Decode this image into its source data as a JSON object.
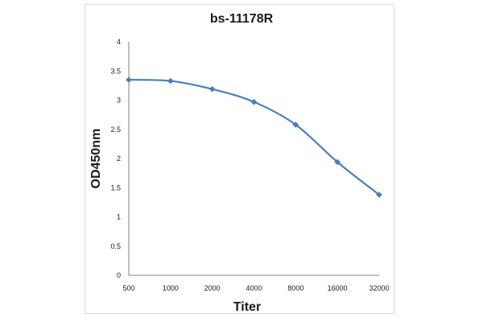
{
  "chart_data": {
    "type": "line",
    "title": "bs-11178R",
    "xlabel": "Titer",
    "ylabel": "OD450nm",
    "categories": [
      "500",
      "1000",
      "2000",
      "4000",
      "8000",
      "16000",
      "32000"
    ],
    "series": [
      {
        "values": [
          3.35,
          3.33,
          3.19,
          2.97,
          2.58,
          1.94,
          1.38
        ]
      }
    ],
    "ylim": [
      0,
      4
    ],
    "yticks": [
      "0",
      "0.5",
      "1",
      "1.5",
      "2",
      "2.5",
      "3",
      "3.5",
      "4"
    ],
    "grid": false,
    "legend": "none",
    "line_color": "#4a7ebb"
  }
}
